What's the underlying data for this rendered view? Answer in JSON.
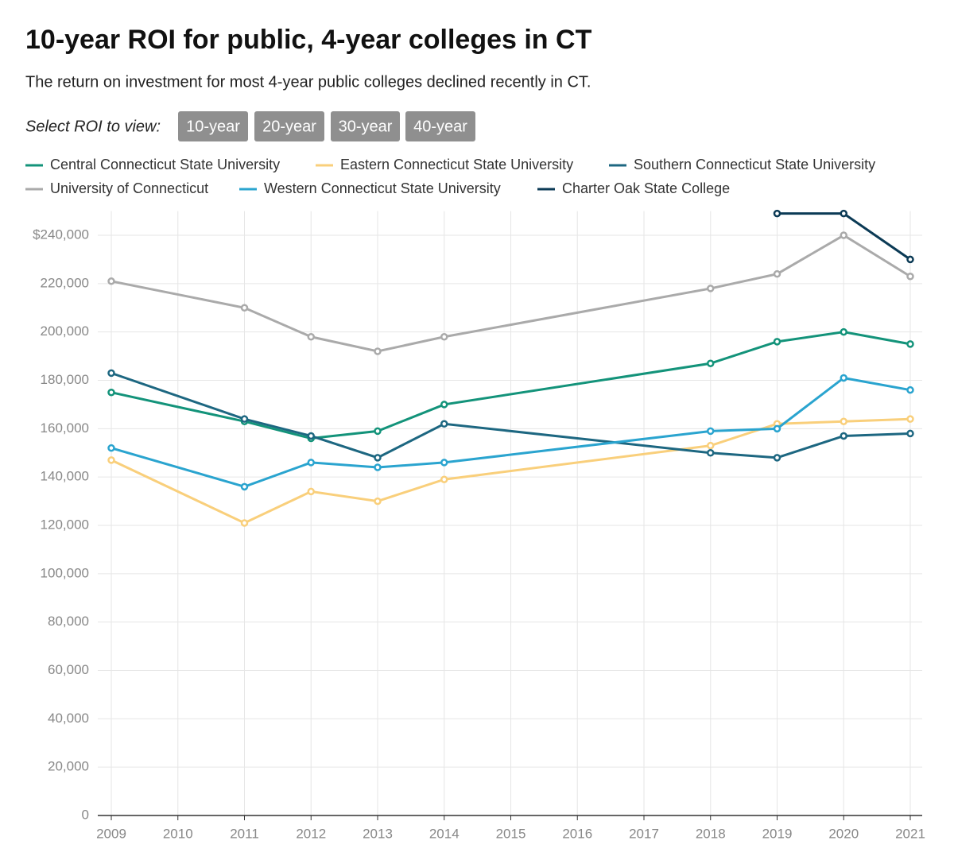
{
  "chart_data": {
    "type": "line",
    "title": "10-year ROI for public, 4-year colleges in CT",
    "subtitle": "The return on investment for most 4-year public colleges declined recently in CT.",
    "selector_label": "Select ROI to view:",
    "buttons": [
      "10-year",
      "20-year",
      "30-year",
      "40-year"
    ],
    "x": [
      2009,
      2011,
      2012,
      2013,
      2014,
      2018,
      2019,
      2020,
      2021
    ],
    "xlim": [
      2009,
      2021
    ],
    "xticks": [
      2009,
      2010,
      2011,
      2012,
      2013,
      2014,
      2015,
      2016,
      2017,
      2018,
      2019,
      2020,
      2021
    ],
    "ylim": [
      0,
      250000
    ],
    "yticks": [
      0,
      {
        "value": 20000,
        "label": "20,000"
      },
      {
        "value": 40000,
        "label": "40,000"
      },
      {
        "value": 60000,
        "label": "60,000"
      },
      {
        "value": 80000,
        "label": "80,000"
      },
      {
        "value": 100000,
        "label": "100,000"
      },
      {
        "value": 120000,
        "label": "120,000"
      },
      {
        "value": 140000,
        "label": "140,000"
      },
      {
        "value": 160000,
        "label": "160,000"
      },
      {
        "value": 180000,
        "label": "180,000"
      },
      {
        "value": 200000,
        "label": "200,000"
      },
      {
        "value": 220000,
        "label": "220,000"
      },
      {
        "value": 240000,
        "label": "$240,000"
      }
    ],
    "grid": true,
    "series": [
      {
        "name": "Central Connecticut State University",
        "color": "#13937a",
        "values": [
          175000,
          163000,
          156000,
          159000,
          170000,
          187000,
          196000,
          200000,
          195000
        ]
      },
      {
        "name": "Eastern Connecticut State University",
        "color": "#f9cf7b",
        "values": [
          147000,
          121000,
          134000,
          130000,
          139000,
          153000,
          162000,
          163000,
          164000
        ]
      },
      {
        "name": "Southern Connecticut State University",
        "color": "#1d6781",
        "values": [
          183000,
          164000,
          157000,
          148000,
          162000,
          150000,
          148000,
          157000,
          158000
        ]
      },
      {
        "name": "University of Connecticut",
        "color": "#aaaaaa",
        "values": [
          221000,
          210000,
          198000,
          192000,
          198000,
          218000,
          224000,
          240000,
          223000
        ]
      },
      {
        "name": "Western Connecticut State University",
        "color": "#2aa4cf",
        "values": [
          152000,
          136000,
          146000,
          144000,
          146000,
          159000,
          160000,
          181000,
          176000
        ]
      },
      {
        "name": "Charter Oak State College",
        "color": "#0b3a55",
        "values": [
          null,
          null,
          null,
          null,
          null,
          null,
          249000,
          249000,
          230000
        ]
      }
    ]
  }
}
